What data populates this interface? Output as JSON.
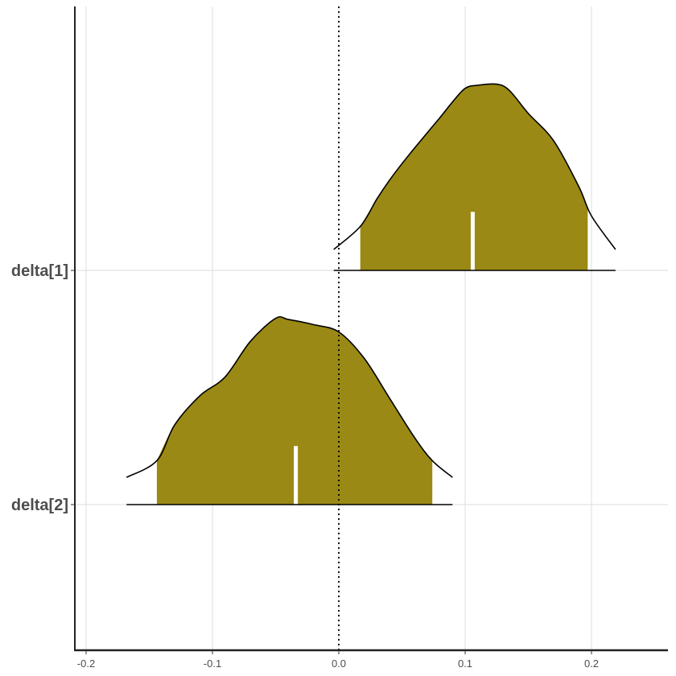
{
  "chart_data": {
    "type": "area",
    "subtype": "density ridges",
    "title": "",
    "xlabel": "",
    "ylabel": "",
    "xlim": [
      -0.208,
      0.26
    ],
    "x_ticks": [
      -0.2,
      -0.1,
      0.0,
      0.1,
      0.2
    ],
    "x_tick_labels": [
      "-0.2",
      "-0.1",
      "0.0",
      "0.1",
      "0.2"
    ],
    "reference_line": {
      "x": 0.0,
      "style": "dotted",
      "color": "#000000"
    },
    "grid": true,
    "legend": "none",
    "fill_color": "#9a8914",
    "median_color": "#ffffff",
    "series": [
      {
        "name": "delta[1]",
        "range": [
          -0.004,
          0.219
        ],
        "interval": [
          0.017,
          0.197
        ],
        "median": 0.106,
        "density": [
          [
            -0.004,
            0.1
          ],
          [
            0.017,
            0.21
          ],
          [
            0.03,
            0.34
          ],
          [
            0.04,
            0.43
          ],
          [
            0.05,
            0.51
          ],
          [
            0.06,
            0.585
          ],
          [
            0.08,
            0.73
          ],
          [
            0.09,
            0.805
          ],
          [
            0.1,
            0.87
          ],
          [
            0.11,
            0.885
          ],
          [
            0.125,
            0.89
          ],
          [
            0.135,
            0.86
          ],
          [
            0.15,
            0.75
          ],
          [
            0.17,
            0.62
          ],
          [
            0.19,
            0.4
          ],
          [
            0.2,
            0.26
          ],
          [
            0.219,
            0.1
          ]
        ]
      },
      {
        "name": "delta[2]",
        "range": [
          -0.168,
          0.09
        ],
        "interval": [
          -0.144,
          0.074
        ],
        "median": -0.034,
        "density": [
          [
            -0.168,
            0.13
          ],
          [
            -0.144,
            0.21
          ],
          [
            -0.13,
            0.38
          ],
          [
            -0.11,
            0.52
          ],
          [
            -0.09,
            0.61
          ],
          [
            -0.07,
            0.78
          ],
          [
            -0.05,
            0.89
          ],
          [
            -0.04,
            0.885
          ],
          [
            -0.02,
            0.86
          ],
          [
            0.0,
            0.825
          ],
          [
            0.02,
            0.7
          ],
          [
            0.04,
            0.51
          ],
          [
            0.06,
            0.32
          ],
          [
            0.074,
            0.21
          ],
          [
            0.09,
            0.13
          ]
        ]
      }
    ]
  }
}
